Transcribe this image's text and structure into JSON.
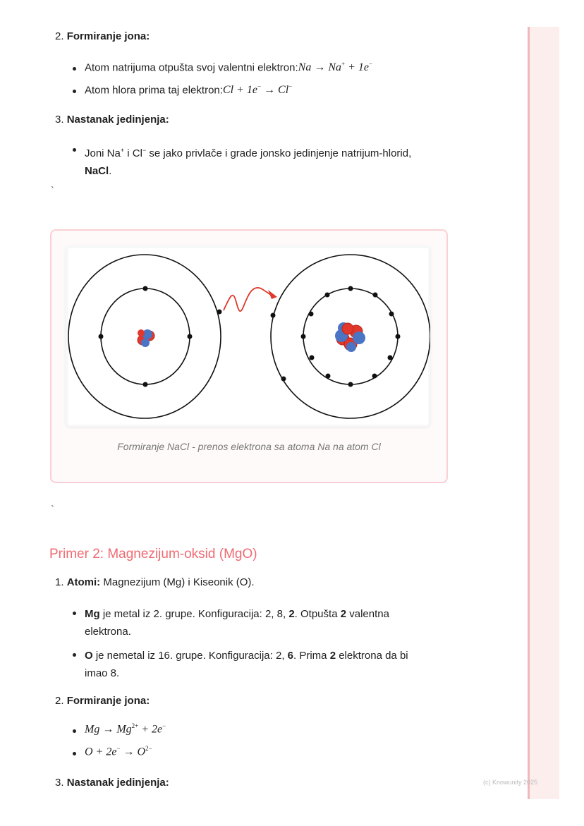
{
  "section1": {
    "step2_num": "2.",
    "step2_title": "Formiranje jona:",
    "b1_text": "Atom natrijuma otpušta svoj valentni elektron:",
    "b1_math": "Na → Na",
    "b1_sup": "+",
    "b1_math2": " + 1e",
    "b1_sup2": "−",
    "b2_text": "Atom hlora prima taj elektron:",
    "b2_math": "Cl + 1e",
    "b2_sup": "−",
    "b2_math2": " → Cl",
    "b2_sup2": "−",
    "step3_num": "3.",
    "step3_title": "Nastanak jedinjenja:",
    "b3_a": "Joni Na",
    "b3_sup1": "+",
    "b3_b": " i Cl",
    "b3_sup2": "−",
    "b3_c": " se jako privlače i grade jonsko jedinjenje natrijum-hlorid,",
    "b3_bold": "NaCl",
    "b3_end": ".",
    "backtick": "`"
  },
  "figure": {
    "caption": "Formiranje NaCl - prenos elektrona sa atoma Na na atom Cl",
    "colors": {
      "proton": "#e2372b",
      "neutron": "#4a74c4",
      "arrow": "#e0392d",
      "border": "#f9d0d3"
    }
  },
  "backtick2": "`",
  "section2": {
    "heading": "Primer 2: Magnezijum-oksid (MgO)",
    "s1_num": "1.",
    "s1_bold": "Atomi:",
    "s1_text": " Magnezijum (Mg) i Kiseonik (O).",
    "mg_bold": "Mg",
    "mg_t1": " je metal iz 2. grupe. Konfiguracija: 2, 8, ",
    "mg_b2": "2",
    "mg_t2": ". Otpušta ",
    "mg_b3": "2",
    "mg_t3": " valentna",
    "mg_line2": "elektrona.",
    "o_bold": "O",
    "o_t1": " je nemetal iz 16. grupe. Konfiguracija: 2, ",
    "o_b2": "6",
    "o_t2": ". Prima ",
    "o_b3": "2",
    "o_t3": " elektrona da bi",
    "o_line2": "imao 8.",
    "s2_num": "2.",
    "s2_title": "Formiranje jona:",
    "eq1_a": "Mg → Mg",
    "eq1_sup": "2+",
    "eq1_b": " + 2e",
    "eq1_sup2": "−",
    "eq2_a": "O + 2e",
    "eq2_sup": "−",
    "eq2_b": " → O",
    "eq2_sup2": "2−",
    "s3_num": "3.",
    "s3_title": "Nastanak jedinjenja:"
  },
  "footer": {
    "copyright": "(c) Knowunity 2025"
  }
}
